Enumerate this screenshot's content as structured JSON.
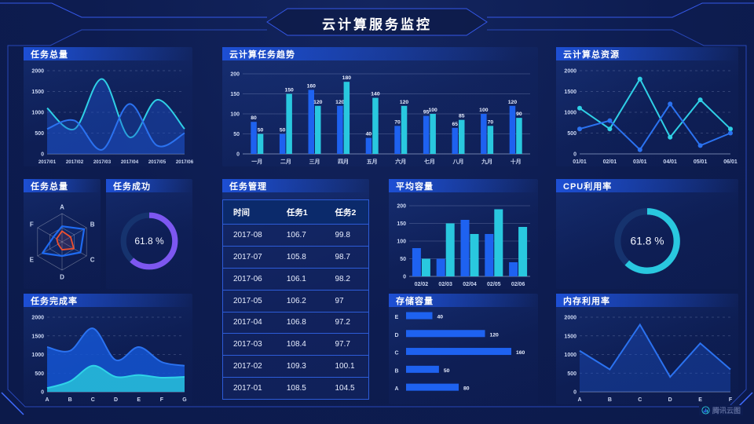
{
  "header": {
    "title": "云计算服务监控"
  },
  "footer": {
    "brand": "腾讯云图"
  },
  "colors": {
    "bg": "#0D1C50",
    "accent": "#1D4FD4",
    "blue": "#1E62F0",
    "cyan": "#29C8DF",
    "purple": "#7D57F0",
    "orange": "#F0502E",
    "track": "#16336E"
  },
  "chart_data": [
    {
      "id": "task-total-area",
      "type": "area",
      "title": "任务总量",
      "smooth": true,
      "x": [
        "2017/01",
        "2017/02",
        "2017/03",
        "2017/04",
        "2017/05",
        "2017/06"
      ],
      "ylim": [
        0,
        2000
      ],
      "yticks": [
        0,
        500,
        1000,
        1500,
        2000
      ],
      "grid": "dashed",
      "series": [
        {
          "name": "cyan",
          "color": "#2FD0E6",
          "fill": "rgba(28,80,200,0.45)",
          "values": [
            1100,
            600,
            1800,
            400,
            1300,
            600
          ]
        },
        {
          "name": "blue",
          "color": "#2B72F0",
          "fill": "rgba(28,80,200,0.35)",
          "values": [
            600,
            800,
            100,
            1200,
            200,
            500
          ]
        }
      ]
    },
    {
      "id": "task-trend-bar",
      "type": "bar",
      "title": "云计算任务趋势",
      "show_labels": true,
      "categories": [
        "一月",
        "二月",
        "三月",
        "四月",
        "五月",
        "六月",
        "七月",
        "八月",
        "九月",
        "十月"
      ],
      "ylim": [
        0,
        200
      ],
      "yticks": [
        0,
        50,
        100,
        150,
        200
      ],
      "series": [
        {
          "name": "blue",
          "color": "#1E62F0",
          "values": [
            80,
            50,
            160,
            120,
            40,
            70,
            95,
            65,
            100,
            120
          ]
        },
        {
          "name": "cyan",
          "color": "#29C8DF",
          "values": [
            50,
            150,
            120,
            180,
            140,
            120,
            100,
            85,
            70,
            90
          ]
        }
      ]
    },
    {
      "id": "cloud-resource-line",
      "type": "line",
      "title": "云计算总资源",
      "markers": true,
      "x": [
        "01/01",
        "02/01",
        "03/01",
        "04/01",
        "05/01",
        "06/01"
      ],
      "ylim": [
        0,
        2000
      ],
      "yticks": [
        0,
        500,
        1000,
        1500,
        2000
      ],
      "grid": "dashed",
      "series": [
        {
          "name": "cyan",
          "color": "#2FD0E6",
          "values": [
            1100,
            600,
            1800,
            400,
            1300,
            600
          ]
        },
        {
          "name": "blue",
          "color": "#2B72F0",
          "values": [
            600,
            800,
            100,
            1200,
            200,
            500
          ]
        }
      ]
    },
    {
      "id": "task-radar",
      "type": "radar",
      "title": "任务总量",
      "max": 100,
      "categories": [
        "A",
        "B",
        "C",
        "D",
        "E",
        "F"
      ],
      "series": [
        {
          "name": "blue",
          "color": "#1F6AF0",
          "fill": "rgba(31,106,240,0.10)",
          "values": [
            55,
            90,
            75,
            50,
            80,
            35
          ]
        },
        {
          "name": "orange",
          "color": "#F0502E",
          "fill": "rgba(240,80,46,0.12)",
          "values": [
            38,
            35,
            48,
            28,
            16,
            22
          ]
        }
      ]
    },
    {
      "id": "task-success-gauge",
      "type": "gauge",
      "title": "任务成功",
      "value": 61.8,
      "label": "61.8 %",
      "color": "purple",
      "size": 80
    },
    {
      "id": "task-table",
      "type": "table",
      "title": "任务管理",
      "headers": [
        "时间",
        "任务1",
        "任务2"
      ],
      "rows": [
        [
          "2017-08",
          "106.7",
          "99.8"
        ],
        [
          "2017-07",
          "105.8",
          "98.7"
        ],
        [
          "2017-06",
          "106.1",
          "98.2"
        ],
        [
          "2017-05",
          "106.2",
          "97"
        ],
        [
          "2017-04",
          "106.8",
          "97.2"
        ],
        [
          "2017-03",
          "108.4",
          "97.7"
        ],
        [
          "2017-02",
          "109.3",
          "100.1"
        ],
        [
          "2017-01",
          "108.5",
          "104.5"
        ]
      ]
    },
    {
      "id": "avg-capacity-bar",
      "type": "bar",
      "title": "平均容量",
      "show_labels": false,
      "categories": [
        "02/02",
        "02/03",
        "02/04",
        "02/05",
        "02/06"
      ],
      "ylim": [
        0,
        200
      ],
      "yticks": [
        0,
        50,
        100,
        150,
        200
      ],
      "series": [
        {
          "name": "blue",
          "color": "#1E62F0",
          "values": [
            80,
            50,
            160,
            120,
            40
          ]
        },
        {
          "name": "cyan",
          "color": "#29C8DF",
          "values": [
            50,
            150,
            120,
            190,
            140
          ]
        }
      ]
    },
    {
      "id": "cpu-gauge",
      "type": "gauge",
      "title": "CPU利用率",
      "value": 61.8,
      "label": "61.8 %",
      "color": "cyan",
      "size": 92
    },
    {
      "id": "completion-area",
      "type": "area",
      "title": "任务完成率",
      "smooth": true,
      "x": [
        "A",
        "B",
        "C",
        "D",
        "E",
        "F",
        "G"
      ],
      "ylim": [
        0,
        2000
      ],
      "yticks": [
        0,
        500,
        1000,
        1500,
        2000
      ],
      "grid": "dashed",
      "series": [
        {
          "name": "blue",
          "color": "#2B72F0",
          "fill": "rgba(20,85,210,0.85)",
          "values": [
            1200,
            1100,
            1700,
            850,
            1200,
            800,
            700
          ]
        },
        {
          "name": "cyan",
          "color": "#2FD3E8",
          "fill": "rgba(37,180,214,0.95)",
          "values": [
            100,
            280,
            700,
            400,
            450,
            380,
            400
          ]
        }
      ]
    },
    {
      "id": "storage-hbar",
      "type": "hbar",
      "title": "存储容量",
      "max": 160,
      "categories": [
        "E",
        "D",
        "C",
        "B",
        "A"
      ],
      "values": [
        40,
        120,
        160,
        50,
        80
      ],
      "color": "#1E62F0"
    },
    {
      "id": "memory-line",
      "type": "line",
      "title": "内存利用率",
      "markers": false,
      "x": [
        "A",
        "B",
        "C",
        "D",
        "E",
        "F"
      ],
      "ylim": [
        0,
        2000
      ],
      "yticks": [
        0,
        500,
        1000,
        1500,
        2000
      ],
      "grid": "dashed",
      "series": [
        {
          "name": "blue",
          "color": "#2B72F0",
          "fill": "rgba(28,80,200,0.4)",
          "values": [
            1100,
            600,
            1800,
            400,
            1300,
            600
          ]
        }
      ]
    }
  ]
}
